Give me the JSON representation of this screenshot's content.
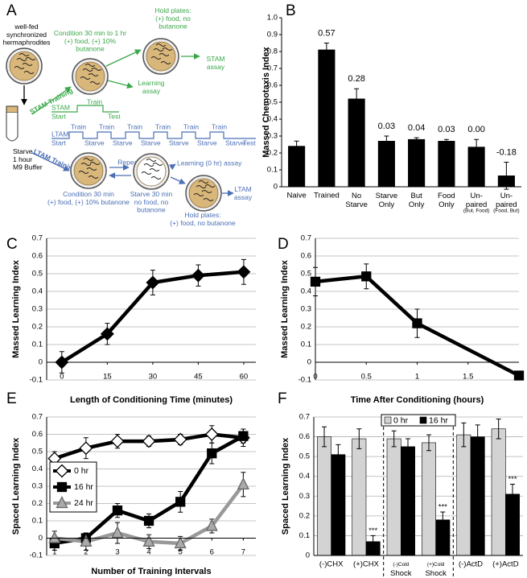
{
  "diagram": {
    "panel": "A",
    "start_text": "well-fed\nsynchronized\nhermaphrodites",
    "stam_condition": "Condition 30 min to 1 hr\n(+) food, (+) 10%\nbutanone",
    "stam_hold": "Hold plates:\n(+) food, no\nbutanone",
    "stam_assay": "STAM\nassay",
    "learning_assay": "Learning\nassay",
    "stam_training": "STAM Training",
    "stam_timeline": {
      "label": "STAM",
      "start": "Start",
      "train": "Train",
      "test": "Test"
    },
    "ltam_timeline": {
      "label": "LTAM",
      "start": "Start",
      "steps": [
        "Train",
        "Starve",
        "Train",
        "Starve",
        "Train",
        "Starve",
        "Train",
        "Starve",
        "Train",
        "Starve",
        "Train",
        "Starve"
      ],
      "test": "Test"
    },
    "starve": "Starve\n1 hour\nM9 Buffer",
    "ltam_training": "LTAM Training",
    "repeat": "Repeat",
    "ltam_condition": "Condition 30 min\n(+) food, (+) 10% butanone",
    "ltam_starve": "Starve 30 min\nno food, no\nbutanone",
    "learning_0hr": "Learning (0 hr) assay",
    "ltam_hold": "Hold plates:\n(+) food, no butanone",
    "ltam_assay": "LTAM\nassay"
  },
  "chart_data": [
    {
      "type": "bar",
      "panel": "B",
      "ylabel": "Massed Chemotaxis Index",
      "categories": [
        "Naive",
        "Trained",
        "No\nStarve",
        "Starve\nOnly",
        "But\nOnly",
        "Food\nOnly",
        "Un-\npaired\n(But, Food)",
        "Un-\npaired\n(Food, But)"
      ],
      "values": [
        0.24,
        0.81,
        0.52,
        0.27,
        0.28,
        0.27,
        0.235,
        0.065
      ],
      "errors": [
        0.03,
        0.04,
        0.06,
        0.03,
        0.01,
        0.01,
        0.045,
        0.08
      ],
      "bar_labels": [
        null,
        "0.57",
        "0.28",
        "0.03",
        "0.04",
        "0.03",
        "0.00",
        "-0.18"
      ],
      "color": "#000000",
      "grid": false,
      "ylim": [
        0,
        1
      ],
      "yticks": [
        0,
        0.1,
        0.2,
        0.3,
        0.4,
        0.5,
        0.6,
        0.7,
        0.8,
        0.9,
        {
          "value": 1,
          "label": "1.0"
        }
      ]
    },
    {
      "type": "line",
      "panel": "C",
      "ylabel": "Massed Learning Index",
      "xlabel": "Length of Conditioning Time (minutes)",
      "x": [
        0,
        15,
        30,
        45,
        60
      ],
      "values": [
        0,
        0.16,
        0.45,
        0.49,
        0.51
      ],
      "errors": [
        0.06,
        0.06,
        0.07,
        0.06,
        0.07
      ],
      "color": "#000000",
      "marker": "diamond",
      "marker_fill": "#000000",
      "grid": true,
      "xlim": [
        -5,
        64
      ],
      "xticks": [
        0,
        15,
        30,
        45,
        60
      ],
      "ylim": [
        -0.1,
        0.7
      ],
      "yticks": [
        -0.1,
        0,
        0.1,
        0.2,
        0.3,
        0.4,
        0.5,
        0.6,
        0.7
      ]
    },
    {
      "type": "line",
      "panel": "D",
      "ylabel": "Massed Learning Index",
      "xlabel": "Time After  Conditioning (hours)",
      "x": [
        0,
        0.5,
        1,
        2
      ],
      "values": [
        0.455,
        0.485,
        0.22,
        -0.075
      ],
      "errors": [
        0.08,
        0.07,
        0.08,
        0.01
      ],
      "color": "#000000",
      "marker": "square",
      "marker_fill": "#000000",
      "grid": true,
      "xlim": [
        0,
        2
      ],
      "xticks": [
        0,
        0.5,
        1,
        1.5
      ],
      "ylim": [
        -0.1,
        0.7
      ],
      "yticks": [
        -0.1,
        0,
        0.1,
        0.2,
        0.3,
        0.4,
        0.5,
        0.6,
        0.7
      ]
    },
    {
      "type": "line",
      "panel": "E",
      "ylabel": "Spaced Learning Index",
      "xlabel": "Number of Training Intervals",
      "x": [
        1,
        2,
        3,
        4,
        5,
        6,
        7
      ],
      "series": [
        {
          "name": "0 hr",
          "color": "#000000",
          "marker": "diamond",
          "marker_fill": "#ffffff",
          "values": [
            0.46,
            0.52,
            0.56,
            0.56,
            0.57,
            0.6,
            0.58
          ],
          "errors": [
            0.04,
            0.06,
            0.04,
            0.03,
            0.03,
            0.05,
            0.05
          ]
        },
        {
          "name": "16 hr",
          "color": "#000000",
          "marker": "square",
          "marker_fill": "#000000",
          "values": [
            -0.03,
            0,
            0.16,
            0.1,
            0.21,
            0.49,
            0.59
          ],
          "errors": [
            0.04,
            0.03,
            0.04,
            0.04,
            0.06,
            0.06,
            0.04
          ]
        },
        {
          "name": "24 hr",
          "color": "#999999",
          "marker": "triangle",
          "marker_fill": "#aaaaaa",
          "values": [
            0,
            -0.02,
            0.03,
            -0.02,
            -0.03,
            0.07,
            0.31
          ],
          "errors": [
            0.04,
            0.05,
            0.06,
            0.04,
            0.04,
            0.04,
            0.07
          ]
        }
      ],
      "legend": "left",
      "grid": true,
      "xlim": [
        0.75,
        7.4
      ],
      "xticks": [
        1,
        2,
        3,
        4,
        5,
        6,
        7
      ],
      "ylim": [
        -0.1,
        0.7
      ],
      "yticks": [
        -0.1,
        0,
        0.1,
        0.2,
        0.3,
        0.4,
        0.5,
        0.6,
        0.7
      ]
    },
    {
      "type": "bar",
      "panel": "F",
      "ylabel": "Spaced Learning Index",
      "categories": [
        "(-)CHX",
        "(+)CHX",
        "(-)Cold\nShock",
        "(+)Cold\nShock",
        "(-)ActD",
        "(+)ActD"
      ],
      "series": [
        {
          "name": "0 hr",
          "color": "#d3d3d3",
          "values": [
            0.6,
            0.59,
            0.59,
            0.57,
            0.61,
            0.64
          ],
          "errors": [
            0.05,
            0.05,
            0.04,
            0.04,
            0.06,
            0.05
          ]
        },
        {
          "name": "16 hr",
          "color": "#000000",
          "values": [
            0.51,
            0.07,
            0.55,
            0.18,
            0.6,
            0.31
          ],
          "errors": [
            0.05,
            0.03,
            0.04,
            0.04,
            0.06,
            0.05
          ],
          "significance": [
            null,
            "***",
            null,
            "***",
            null,
            "***"
          ]
        }
      ],
      "legend": "top",
      "grid": true,
      "ylim": [
        0,
        0.7
      ],
      "yticks": [
        0,
        0.1,
        0.2,
        0.3,
        0.4,
        0.5,
        0.6,
        0.7
      ]
    }
  ]
}
